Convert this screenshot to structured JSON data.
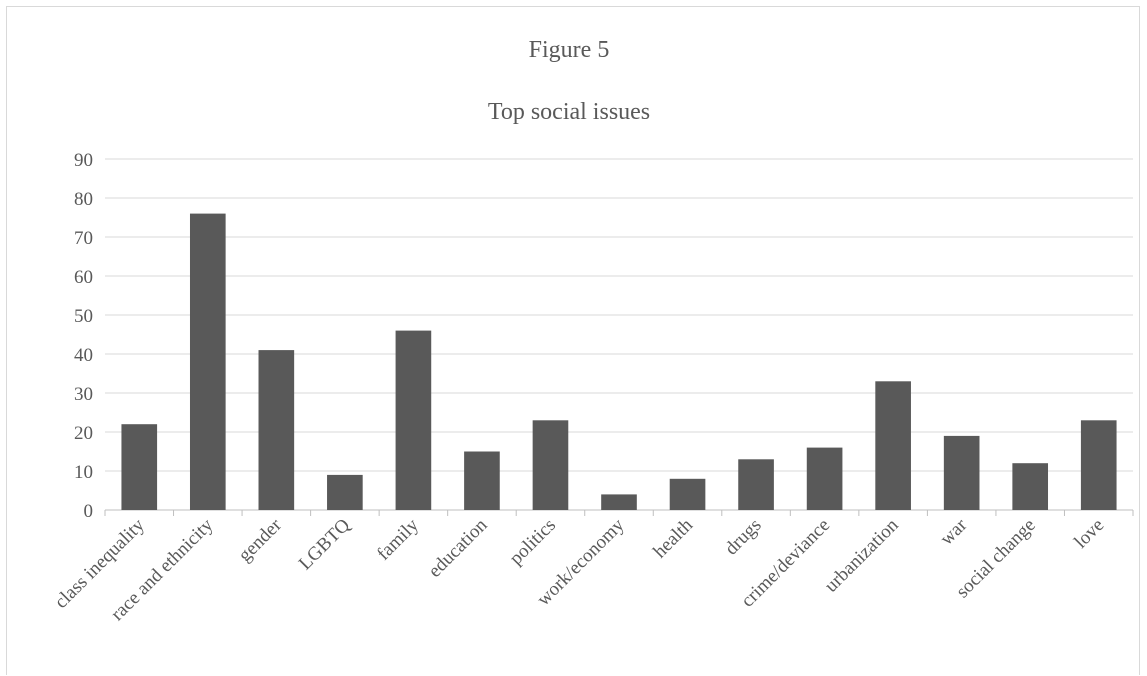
{
  "chart_data": {
    "type": "bar",
    "title": "Figure 5",
    "subtitle": "Top social issues",
    "xlabel": "",
    "ylabel": "",
    "categories": [
      "class inequality",
      "race and ethnicity",
      "gender",
      "LGBTQ",
      "family",
      "education",
      "politics",
      "work/economy",
      "health",
      "drugs",
      "crime/deviance",
      "urbanization",
      "war",
      "social change",
      "love"
    ],
    "series": [
      {
        "values": [
          22,
          76,
          41,
          9,
          46,
          15,
          23,
          4,
          8,
          13,
          16,
          33,
          19,
          12,
          23
        ]
      }
    ],
    "ylim": [
      0,
      90
    ],
    "yticks": [
      0,
      10,
      20,
      30,
      40,
      50,
      60,
      70,
      80,
      90
    ],
    "grid": true,
    "legend": "none",
    "colors": {
      "bar": "#595959",
      "grid": "#d9d9d9",
      "text": "#595959"
    }
  }
}
